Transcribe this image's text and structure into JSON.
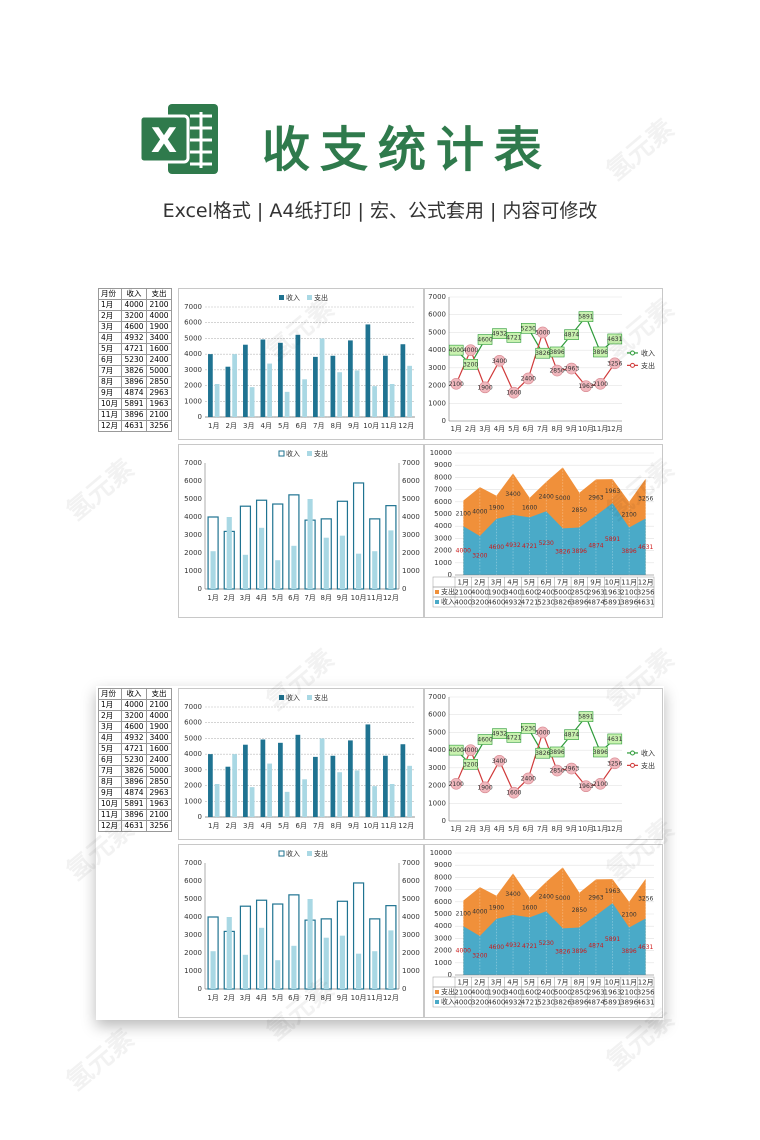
{
  "header": {
    "title": "收支统计表",
    "subtitle": "Excel格式 | A4纸打印 | 宏、公式套用 | 内容可修改",
    "logo_letter": "X"
  },
  "watermark": "氢元素",
  "colors": {
    "income_dark": "#1f7391",
    "expense_light": "#a9d8e4",
    "line_income": "#2e9b3a",
    "line_expense": "#d03a3a",
    "area_income": "#4aaac8",
    "area_expense": "#f0903a",
    "title_green": "#2f7a4c"
  },
  "table": {
    "headers": [
      "月份",
      "收入",
      "支出"
    ],
    "rows": [
      [
        "1月",
        "4000",
        "2100"
      ],
      [
        "2月",
        "3200",
        "4000"
      ],
      [
        "3月",
        "4600",
        "1900"
      ],
      [
        "4月",
        "4932",
        "3400"
      ],
      [
        "5月",
        "4721",
        "1600"
      ],
      [
        "6月",
        "5230",
        "2400"
      ],
      [
        "7月",
        "3826",
        "5000"
      ],
      [
        "8月",
        "3896",
        "2850"
      ],
      [
        "9月",
        "4874",
        "2963"
      ],
      [
        "10月",
        "5891",
        "1963"
      ],
      [
        "11月",
        "3896",
        "2100"
      ],
      [
        "12月",
        "4631",
        "3256"
      ]
    ]
  },
  "chart_data": [
    {
      "type": "bar",
      "categories": [
        "1月",
        "2月",
        "3月",
        "4月",
        "5月",
        "6月",
        "7月",
        "8月",
        "9月",
        "10月",
        "11月",
        "12月"
      ],
      "series": [
        {
          "name": "收入",
          "values": [
            4000,
            3200,
            4600,
            4932,
            4721,
            5230,
            3826,
            3896,
            4874,
            5891,
            3896,
            4631
          ]
        },
        {
          "name": "支出",
          "values": [
            2100,
            4000,
            1900,
            3400,
            1600,
            2400,
            5000,
            2850,
            2963,
            1963,
            2100,
            3256
          ]
        }
      ],
      "ylim": [
        0,
        7000
      ],
      "yticks": [
        0,
        1000,
        2000,
        3000,
        4000,
        5000,
        6000,
        7000
      ],
      "legend": "top",
      "grid": true
    },
    {
      "type": "line",
      "categories": [
        "1月",
        "2月",
        "3月",
        "4月",
        "5月",
        "6月",
        "7月",
        "8月",
        "9月",
        "10月",
        "11月",
        "12月"
      ],
      "series": [
        {
          "name": "收入",
          "values": [
            4000,
            3200,
            4600,
            4932,
            4721,
            5230,
            3826,
            3896,
            4874,
            5891,
            3896,
            4631
          ]
        },
        {
          "name": "支出",
          "values": [
            2100,
            4000,
            1900,
            3400,
            1600,
            2400,
            5000,
            2850,
            2963,
            1963,
            2100,
            3256
          ]
        }
      ],
      "ylim": [
        0,
        7000
      ],
      "yticks": [
        0,
        1000,
        2000,
        3000,
        4000,
        5000,
        6000,
        7000
      ],
      "legend": "right",
      "grid": true
    },
    {
      "type": "bar",
      "categories": [
        "1月",
        "2月",
        "3月",
        "4月",
        "5月",
        "6月",
        "7月",
        "8月",
        "9月",
        "10月",
        "11月",
        "12月"
      ],
      "series": [
        {
          "name": "收入",
          "values": [
            4000,
            3200,
            4600,
            4932,
            4721,
            5230,
            3826,
            3896,
            4874,
            5891,
            3896,
            4631
          ]
        },
        {
          "name": "支出",
          "values": [
            2100,
            4000,
            1900,
            3400,
            1600,
            2400,
            5000,
            2850,
            2963,
            1963,
            2100,
            3256
          ]
        }
      ],
      "ylim": [
        0,
        7000
      ],
      "yticks": [
        0,
        1000,
        2000,
        3000,
        4000,
        5000,
        6000,
        7000
      ],
      "legend": "top",
      "grid": false,
      "secondary_axis": true
    },
    {
      "type": "area",
      "categories": [
        "1月",
        "2月",
        "3月",
        "4月",
        "5月",
        "6月",
        "7月",
        "8月",
        "9月",
        "10月",
        "11月",
        "12月"
      ],
      "series": [
        {
          "name": "收入",
          "values": [
            4000,
            3200,
            4600,
            4932,
            4721,
            5230,
            3826,
            3896,
            4874,
            5891,
            3896,
            4631
          ]
        },
        {
          "name": "支出",
          "values": [
            2100,
            4000,
            1900,
            3400,
            1600,
            2400,
            5000,
            2850,
            2963,
            1963,
            2100,
            3256
          ]
        }
      ],
      "stacked": true,
      "ylim": [
        0,
        10000
      ],
      "yticks": [
        0,
        1000,
        2000,
        3000,
        4000,
        5000,
        6000,
        7000,
        8000,
        9000,
        10000
      ],
      "legend": "table",
      "grid": true
    }
  ]
}
